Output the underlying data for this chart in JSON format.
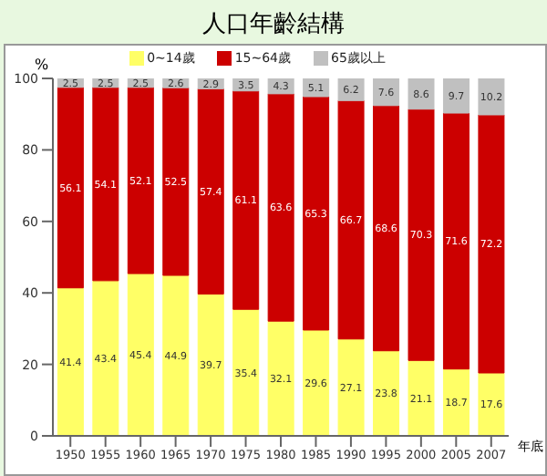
{
  "chart_data": {
    "type": "bar",
    "title": "人口年齡結構",
    "ylabel": "%",
    "xlabel": "年底",
    "stacked": true,
    "data_labels": true,
    "legend": "top",
    "grid": false,
    "categories": [
      "1950",
      "1955",
      "1960",
      "1965",
      "1970",
      "1975",
      "1980",
      "1985",
      "1990",
      "1995",
      "2000",
      "2005",
      "2007"
    ],
    "ylim": [
      0,
      100
    ],
    "yticks": [
      0,
      20,
      40,
      60,
      80,
      100
    ],
    "series": [
      {
        "name": "0~14歲",
        "color": "#ffff66",
        "values": [
          41.4,
          43.4,
          45.4,
          44.9,
          39.7,
          35.4,
          32.1,
          29.6,
          27.1,
          23.8,
          21.1,
          18.7,
          17.6
        ]
      },
      {
        "name": "15~64歲",
        "color": "#cc0000",
        "values": [
          56.1,
          54.1,
          52.1,
          52.5,
          57.4,
          61.1,
          63.6,
          65.3,
          66.7,
          68.6,
          70.3,
          71.6,
          72.2
        ]
      },
      {
        "name": "65歲以上",
        "color": "#c0c0c0",
        "values": [
          2.5,
          2.5,
          2.5,
          2.6,
          2.9,
          3.5,
          4.3,
          5.1,
          6.2,
          7.6,
          8.6,
          9.7,
          10.2
        ]
      }
    ]
  }
}
